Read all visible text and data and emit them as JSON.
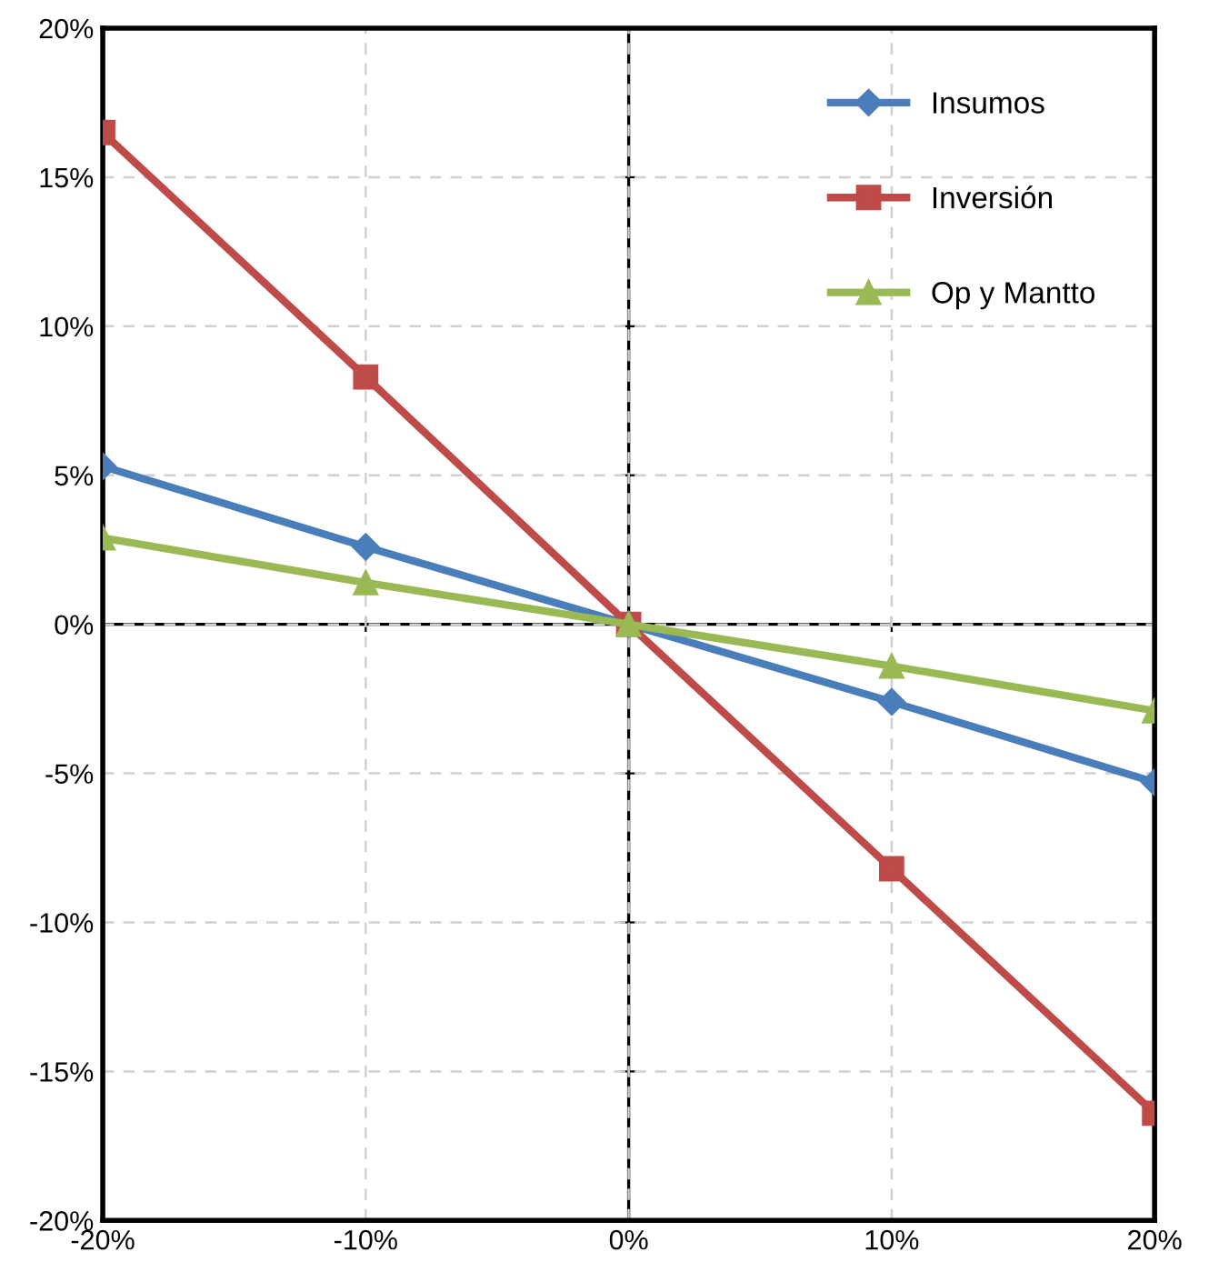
{
  "chart_data": {
    "type": "line",
    "x": [
      -20,
      -10,
      0,
      10,
      20
    ],
    "series": [
      {
        "name": "Insumos",
        "color": "#4a7ebb",
        "marker": "diamond",
        "values": [
          5.3,
          2.6,
          0,
          -2.6,
          -5.3
        ]
      },
      {
        "name": "Inversión",
        "color": "#be4b48",
        "marker": "square",
        "values": [
          16.5,
          8.3,
          0,
          -8.2,
          -16.4
        ]
      },
      {
        "name": "Op y Mantto",
        "color": "#98b954",
        "marker": "triangle",
        "values": [
          2.9,
          1.4,
          0,
          -1.4,
          -2.9
        ]
      }
    ],
    "xlim": [
      -20,
      20
    ],
    "ylim": [
      -20,
      20
    ],
    "xticks": [
      {
        "value": -20,
        "label": "-20%"
      },
      {
        "value": -10,
        "label": "-10%"
      },
      {
        "value": 0,
        "label": "0%"
      },
      {
        "value": 10,
        "label": "10%"
      },
      {
        "value": 20,
        "label": "20%"
      }
    ],
    "yticks": [
      {
        "value": -20,
        "label": "-20%"
      },
      {
        "value": -15,
        "label": "-15%"
      },
      {
        "value": -10,
        "label": "-10%"
      },
      {
        "value": -5,
        "label": "-5%"
      },
      {
        "value": 0,
        "label": "0%"
      },
      {
        "value": 5,
        "label": "5%"
      },
      {
        "value": 10,
        "label": "10%"
      },
      {
        "value": 15,
        "label": "15%"
      },
      {
        "value": 20,
        "label": "20%"
      }
    ],
    "grid": true,
    "legend": "top right",
    "line_style": "solid"
  }
}
